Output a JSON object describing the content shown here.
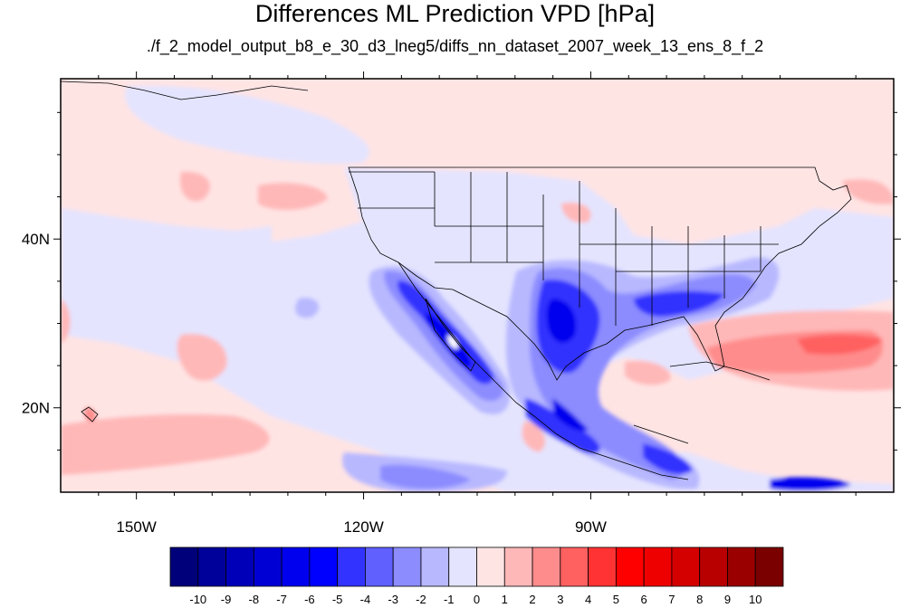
{
  "title": "Differences ML Prediction VPD [hPa]",
  "subtitle": "./f_2_model_output_b8_e_30_d3_lneg5/diffs_nn_dataset_2007_week_13_ens_8_f_2",
  "map": {
    "lon_range": [
      -160,
      -50
    ],
    "lat_range": [
      10,
      59
    ],
    "lat_ticks": [
      {
        "value": 40,
        "label": "40N"
      },
      {
        "value": 20,
        "label": "20N"
      }
    ],
    "lon_ticks": [
      {
        "value": -150,
        "label": "150W"
      },
      {
        "value": -120,
        "label": "120W"
      },
      {
        "value": -90,
        "label": "90W"
      }
    ]
  },
  "colorbar": {
    "labels": [
      "-10",
      "-9",
      "-8",
      "-7",
      "-6",
      "-5",
      "-4",
      "-3",
      "-2",
      "-1",
      "0",
      "1",
      "2",
      "3",
      "4",
      "5",
      "6",
      "7",
      "8",
      "9",
      "10"
    ],
    "colors": [
      "#00007a",
      "#00009a",
      "#0000b8",
      "#0000d4",
      "#0000ee",
      "#0000ff",
      "#3333ff",
      "#6060ff",
      "#8c8cff",
      "#b8b8ff",
      "#e4e4ff",
      "#ffe4e4",
      "#ffb8b8",
      "#ff8c8c",
      "#ff6060",
      "#ff3333",
      "#ff0000",
      "#ee0000",
      "#d40000",
      "#b80000",
      "#9a0000",
      "#7a0000"
    ]
  }
}
